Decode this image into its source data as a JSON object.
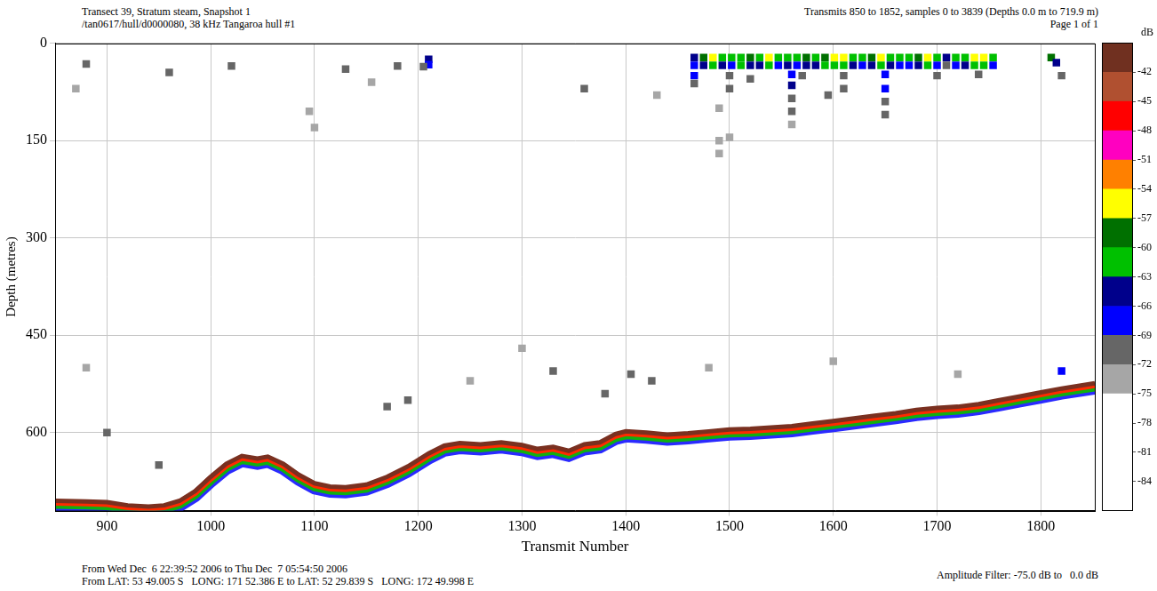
{
  "chart_data": {
    "type": "echogram",
    "title": "Transect 39, Stratum steam, Snapshot 1",
    "subtitle": "/tan0617/hull/d0000080, 38 kHz Tangaroa hull #1",
    "annotations": [
      "Transmits 850 to 1852, samples 0 to 3839 (Depths 0.0 m to 719.9 m)",
      "Page 1 of 1",
      "From Wed Dec  6 22:39:52 2006 to Thu Dec  7 05:54:50 2006",
      "From LAT: 53 49.005 S   LONG: 171 52.386 E to LAT: 52 29.839 S   LONG: 172 49.998 E",
      "Amplitude Filter: -75.0 dB to   0.0 dB"
    ],
    "x_label": "Transmit Number",
    "y_label": "Depth (metres)",
    "xlim": [
      850,
      1852
    ],
    "xticks": [
      900,
      1000,
      1100,
      1200,
      1300,
      1400,
      1500,
      1600,
      1700,
      1800
    ],
    "ylim": [
      0,
      719.9
    ],
    "yticks": [
      0,
      150,
      300,
      450,
      600
    ],
    "grid": true,
    "series": [
      {
        "type": "line",
        "color": "#7a3020",
        "x": [
          850,
          880,
          900,
          920,
          940,
          955,
          970,
          985,
          1000,
          1015,
          1030,
          1045,
          1055,
          1070,
          1085,
          1100,
          1115,
          1130,
          1150,
          1170,
          1190,
          1210,
          1225,
          1240,
          1260,
          1280,
          1300,
          1315,
          1330,
          1345,
          1360,
          1375,
          1390,
          1400,
          1420,
          1440,
          1460,
          1480,
          1500,
          1520,
          1540,
          1560,
          1580,
          1600,
          1620,
          1640,
          1660,
          1680,
          1700,
          1720,
          1740,
          1760,
          1780,
          1800,
          1820,
          1840,
          1852
        ],
        "values": [
          705,
          706,
          707,
          712,
          714,
          712,
          705,
          690,
          668,
          648,
          636,
          640,
          637,
          648,
          665,
          678,
          683,
          684,
          680,
          668,
          652,
          632,
          620,
          616,
          618,
          615,
          619,
          625,
          622,
          628,
          618,
          615,
          602,
          598,
          600,
          603,
          601,
          598,
          595,
          594,
          592,
          590,
          586,
          582,
          578,
          574,
          570,
          565,
          562,
          560,
          556,
          550,
          544,
          538,
          532,
          527,
          524
        ]
      }
    ],
    "cells": [
      [
        1466,
        22,
        -66
      ],
      [
        1475,
        22,
        -60
      ],
      [
        1484,
        22,
        -57
      ],
      [
        1493,
        22,
        -61
      ],
      [
        1502,
        22,
        -62
      ],
      [
        1511,
        22,
        -61
      ],
      [
        1520,
        22,
        -60
      ],
      [
        1529,
        22,
        -61
      ],
      [
        1538,
        22,
        -57
      ],
      [
        1547,
        22,
        -62
      ],
      [
        1556,
        22,
        -61
      ],
      [
        1565,
        22,
        -63
      ],
      [
        1574,
        22,
        -60
      ],
      [
        1583,
        22,
        -61
      ],
      [
        1592,
        22,
        -60
      ],
      [
        1601,
        22,
        -57
      ],
      [
        1610,
        22,
        -56
      ],
      [
        1619,
        22,
        -61
      ],
      [
        1628,
        22,
        -62
      ],
      [
        1637,
        22,
        -60
      ],
      [
        1646,
        22,
        -57
      ],
      [
        1655,
        22,
        -61
      ],
      [
        1664,
        22,
        -63
      ],
      [
        1673,
        22,
        -61
      ],
      [
        1682,
        22,
        -60
      ],
      [
        1691,
        22,
        -57
      ],
      [
        1700,
        22,
        -61
      ],
      [
        1709,
        22,
        -64
      ],
      [
        1718,
        22,
        -62
      ],
      [
        1727,
        22,
        -61
      ],
      [
        1736,
        22,
        -57
      ],
      [
        1745,
        22,
        -56
      ],
      [
        1754,
        22,
        -61
      ],
      [
        1466,
        34,
        -69
      ],
      [
        1475,
        34,
        -66
      ],
      [
        1484,
        34,
        -61
      ],
      [
        1493,
        34,
        -66
      ],
      [
        1502,
        34,
        -67
      ],
      [
        1511,
        34,
        -63
      ],
      [
        1520,
        34,
        -66
      ],
      [
        1529,
        34,
        -64
      ],
      [
        1538,
        34,
        -61
      ],
      [
        1547,
        34,
        -67
      ],
      [
        1556,
        34,
        -66
      ],
      [
        1565,
        34,
        -68
      ],
      [
        1574,
        34,
        -64
      ],
      [
        1583,
        34,
        -66
      ],
      [
        1592,
        34,
        -63
      ],
      [
        1601,
        34,
        -61
      ],
      [
        1610,
        34,
        -62
      ],
      [
        1619,
        34,
        -66
      ],
      [
        1628,
        34,
        -67
      ],
      [
        1637,
        34,
        -65
      ],
      [
        1646,
        34,
        -63
      ],
      [
        1655,
        34,
        -66
      ],
      [
        1664,
        34,
        -69
      ],
      [
        1673,
        34,
        -67
      ],
      [
        1682,
        34,
        -66
      ],
      [
        1691,
        34,
        -63
      ],
      [
        1700,
        34,
        -67
      ],
      [
        1709,
        34,
        -70
      ],
      [
        1718,
        34,
        -68
      ],
      [
        1727,
        34,
        -66
      ],
      [
        1736,
        34,
        -63
      ],
      [
        1745,
        34,
        -62
      ],
      [
        1754,
        34,
        -67
      ],
      [
        1466,
        50,
        -67
      ],
      [
        1466,
        62,
        -70
      ],
      [
        1500,
        50,
        -70
      ],
      [
        1500,
        70,
        -72
      ],
      [
        1560,
        48,
        -67
      ],
      [
        1560,
        65,
        -66
      ],
      [
        1560,
        85,
        -70
      ],
      [
        1560,
        105,
        -72
      ],
      [
        1560,
        125,
        -73
      ],
      [
        1570,
        50,
        -70
      ],
      [
        1650,
        48,
        -67
      ],
      [
        1650,
        70,
        -67
      ],
      [
        1650,
        90,
        -70
      ],
      [
        1650,
        110,
        -72
      ],
      [
        1520,
        55,
        -72
      ],
      [
        1610,
        50,
        -70
      ],
      [
        1610,
        70,
        -72
      ],
      [
        1700,
        50,
        -70
      ],
      [
        1740,
        48,
        -70
      ],
      [
        1490,
        100,
        -73
      ],
      [
        1490,
        150,
        -73
      ],
      [
        1490,
        170,
        -74
      ],
      [
        1595,
        80,
        -72
      ],
      [
        1500,
        145,
        -73
      ],
      [
        1210,
        25,
        -66
      ],
      [
        1210,
        33,
        -69
      ],
      [
        1205,
        36,
        -70
      ],
      [
        880,
        32,
        -72
      ],
      [
        870,
        70,
        -73
      ],
      [
        960,
        45,
        -70
      ],
      [
        1020,
        35,
        -72
      ],
      [
        1130,
        40,
        -72
      ],
      [
        1155,
        60,
        -73
      ],
      [
        1095,
        105,
        -73
      ],
      [
        1100,
        130,
        -74
      ],
      [
        1360,
        70,
        -70
      ],
      [
        1180,
        35,
        -70
      ],
      [
        1810,
        22,
        -60
      ],
      [
        1815,
        30,
        -66
      ],
      [
        1820,
        50,
        -72
      ],
      [
        1430,
        80,
        -73
      ],
      [
        1300,
        470,
        -73
      ],
      [
        1330,
        505,
        -72
      ],
      [
        1425,
        520,
        -70
      ],
      [
        1405,
        510,
        -72
      ],
      [
        1250,
        520,
        -73
      ],
      [
        1170,
        560,
        -70
      ],
      [
        1190,
        550,
        -70
      ],
      [
        1380,
        540,
        -72
      ],
      [
        1600,
        490,
        -74
      ],
      [
        880,
        500,
        -74
      ],
      [
        900,
        600,
        -72
      ],
      [
        950,
        650,
        -70
      ],
      [
        1480,
        500,
        -73
      ],
      [
        1720,
        510,
        -73
      ],
      [
        1820,
        505,
        -67
      ]
    ],
    "colorbar": {
      "title": "dB",
      "range": [
        -87,
        -39
      ],
      "ticks": [
        -42,
        -45,
        -48,
        -51,
        -54,
        -57,
        -60,
        -63,
        -66,
        -69,
        -72,
        -75,
        -78,
        -81,
        -84
      ],
      "colors": [
        "#ffffff",
        "#ffffff",
        "#ffffff",
        "#ffffff",
        "#a6a6a6",
        "#666666",
        "#0000ff",
        "#00008b",
        "#00c000",
        "#007000",
        "#ffff00",
        "#ff8000",
        "#ff00c0",
        "#ff0000",
        "#b05030",
        "#703020"
      ]
    }
  }
}
